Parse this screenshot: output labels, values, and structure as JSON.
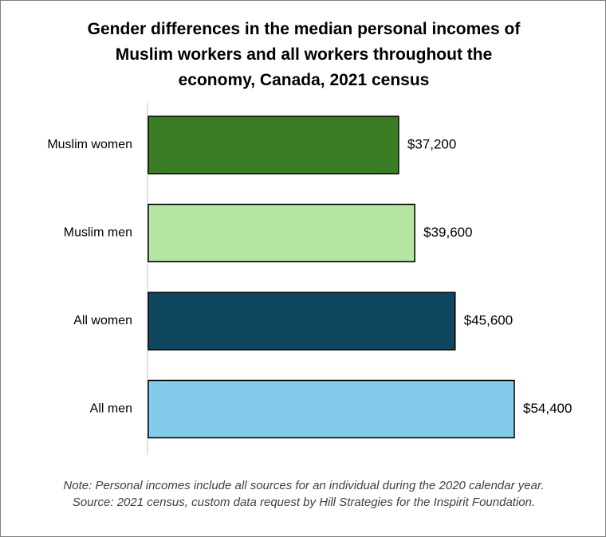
{
  "title_lines": [
    "Gender differences in the median personal incomes of",
    "Muslim workers and all workers throughout the",
    "economy, Canada, 2021 census"
  ],
  "notes": [
    "Note: Personal incomes include all sources for an individual during the 2020 calendar year.",
    "Source: 2021 census, custom data request by Hill Strategies for the Inspirit Foundation."
  ],
  "chart_data": {
    "type": "bar",
    "orientation": "horizontal",
    "title": "Gender differences in the median personal incomes of Muslim workers and all workers throughout the economy, Canada, 2021 census",
    "categories": [
      "Muslim women",
      "Muslim men",
      "All women",
      "All men"
    ],
    "values": [
      37200,
      39600,
      45600,
      54400
    ],
    "value_labels": [
      "$37,200",
      "$39,600",
      "$45,600",
      "$54,400"
    ],
    "colors": [
      "#3b7d23",
      "#b4e5a2",
      "#0f4761",
      "#83cbeb"
    ],
    "xlim": [
      0,
      54400
    ],
    "grid": false,
    "legend": "none"
  }
}
